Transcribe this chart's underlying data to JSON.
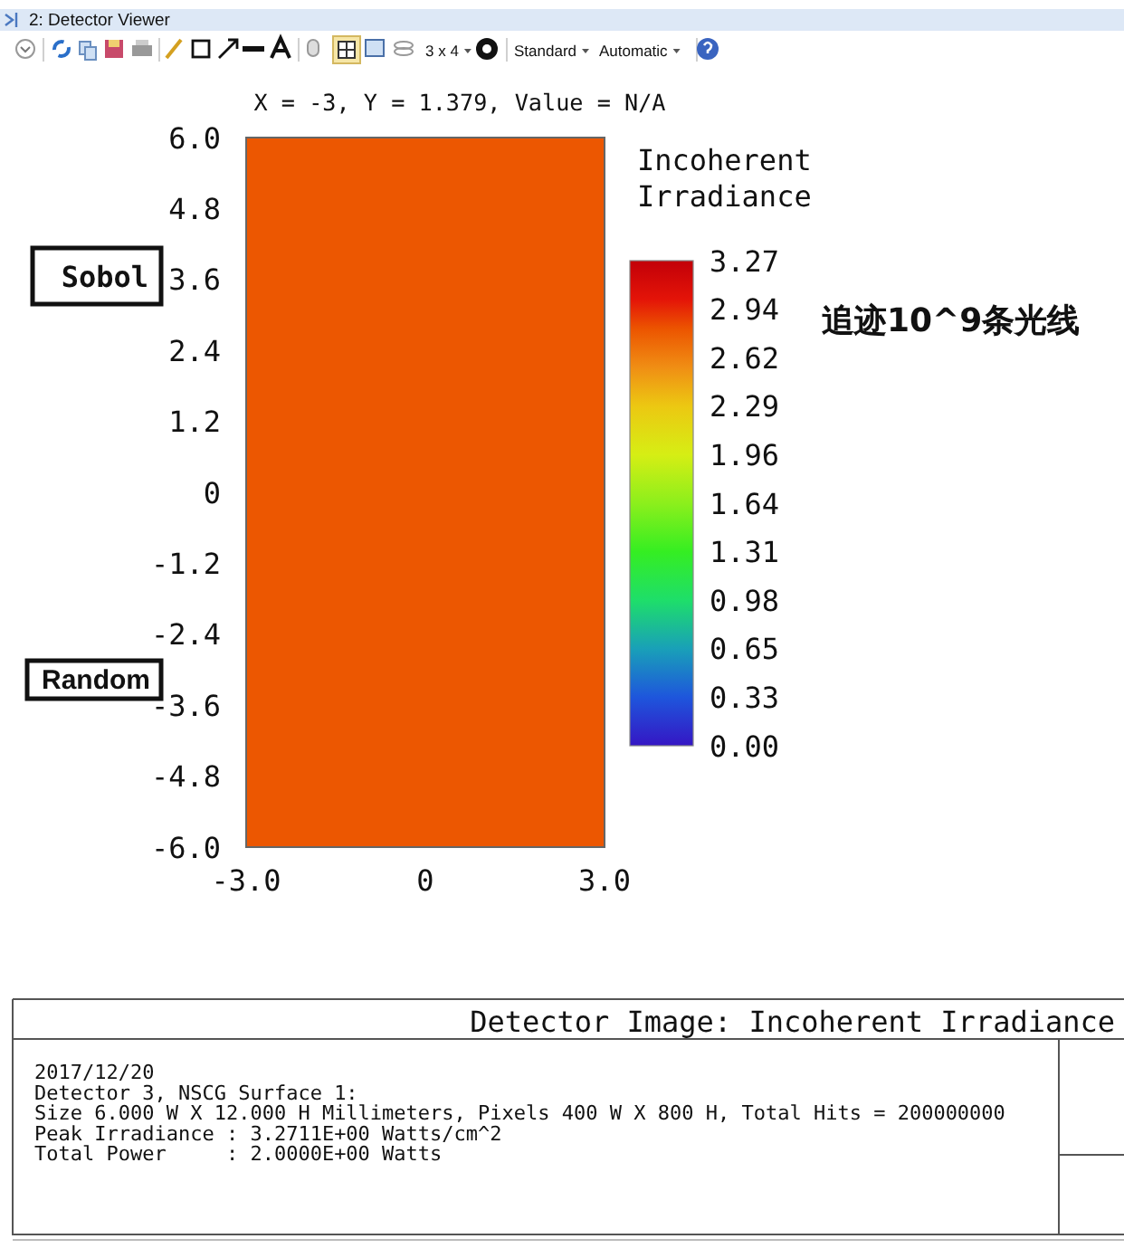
{
  "chart_data": {
    "type": "heatmap",
    "title": "Detector Image: Incoherent Irradiance",
    "subtitle": "X = -3, Y = 1.379, Value = N/A",
    "clabel": "Incoherent\nIrradiance",
    "cells": [
      [
        2.8
      ],
      [
        2.8
      ]
    ],
    "xlim": [
      -3,
      3
    ],
    "xticks": [
      {
        "value": -3,
        "label": "-3.0"
      },
      0,
      {
        "value": 3,
        "label": "3.0"
      }
    ],
    "ylim": [
      -6,
      6
    ],
    "yticks": [
      {
        "value": 6,
        "label": "6.0"
      },
      {
        "value": 4.8,
        "label": "4.8"
      },
      {
        "value": 3.6,
        "label": "3.6"
      },
      {
        "value": 2.4,
        "label": "2.4"
      },
      {
        "value": 1.2,
        "label": "1.2"
      },
      0,
      {
        "value": -1.2,
        "label": "-1.2"
      },
      {
        "value": -2.4,
        "label": "-2.4"
      },
      {
        "value": -3.6,
        "label": "-3.6"
      },
      {
        "value": -4.8,
        "label": "-4.8"
      },
      {
        "value": -6,
        "label": "-6.0"
      }
    ],
    "clim": [
      0,
      3.27
    ],
    "cticks": [
      {
        "value": 0,
        "label": "0.00"
      },
      {
        "value": 0.327,
        "label": "0.33"
      },
      {
        "value": 0.654,
        "label": "0.65"
      },
      {
        "value": 0.981,
        "label": "0.98"
      },
      {
        "value": 1.308,
        "label": "1.31"
      },
      {
        "value": 1.635,
        "label": "1.64"
      },
      {
        "value": 1.962,
        "label": "1.96"
      },
      {
        "value": 2.289,
        "label": "2.29"
      },
      {
        "value": 2.616,
        "label": "2.62"
      },
      {
        "value": 2.943,
        "label": "2.94"
      },
      3.27
    ],
    "annotations": [
      "2: Detector Viewer",
      "3 x 4",
      "Standard",
      "Automatic",
      "Sobol",
      "Random",
      "追迹10^9条光线",
      "2017/12/20",
      "Detector 3, NSCG Surface 1:",
      "Size 6.000 W X 12.000 H Millimeters, Pixels 400 W X 800 H, Total Hits = 200000000",
      "Peak Irradiance : 3.2711E+00 Watts/cm^2",
      "Total Power     : 2.0000E+00 Watts"
    ]
  }
}
